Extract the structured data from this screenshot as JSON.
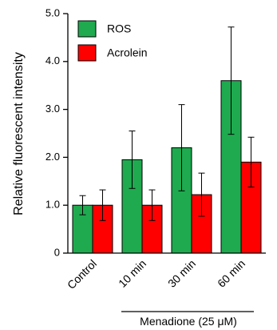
{
  "chart_data": {
    "type": "bar",
    "categories": [
      "Control",
      "10 min",
      "30 min",
      "60 min"
    ],
    "series": [
      {
        "name": "ROS",
        "color": "#1faa4f",
        "values": [
          1.0,
          1.95,
          2.2,
          3.6
        ],
        "errors": [
          0.2,
          0.6,
          0.9,
          1.12
        ]
      },
      {
        "name": "Acrolein",
        "color": "#ff0000",
        "values": [
          1.0,
          1.0,
          1.22,
          1.9
        ],
        "errors": [
          0.32,
          0.32,
          0.45,
          0.52
        ]
      }
    ],
    "ylabel": "Relative fluorescent intensity",
    "ylim": [
      0,
      5.0
    ],
    "yticks": [
      "0",
      "1.0",
      "2.0",
      "3.0",
      "4.0",
      "5.0"
    ],
    "group_label": "Menadione (25 μM)",
    "grid": false,
    "legend_position": "top-left"
  }
}
